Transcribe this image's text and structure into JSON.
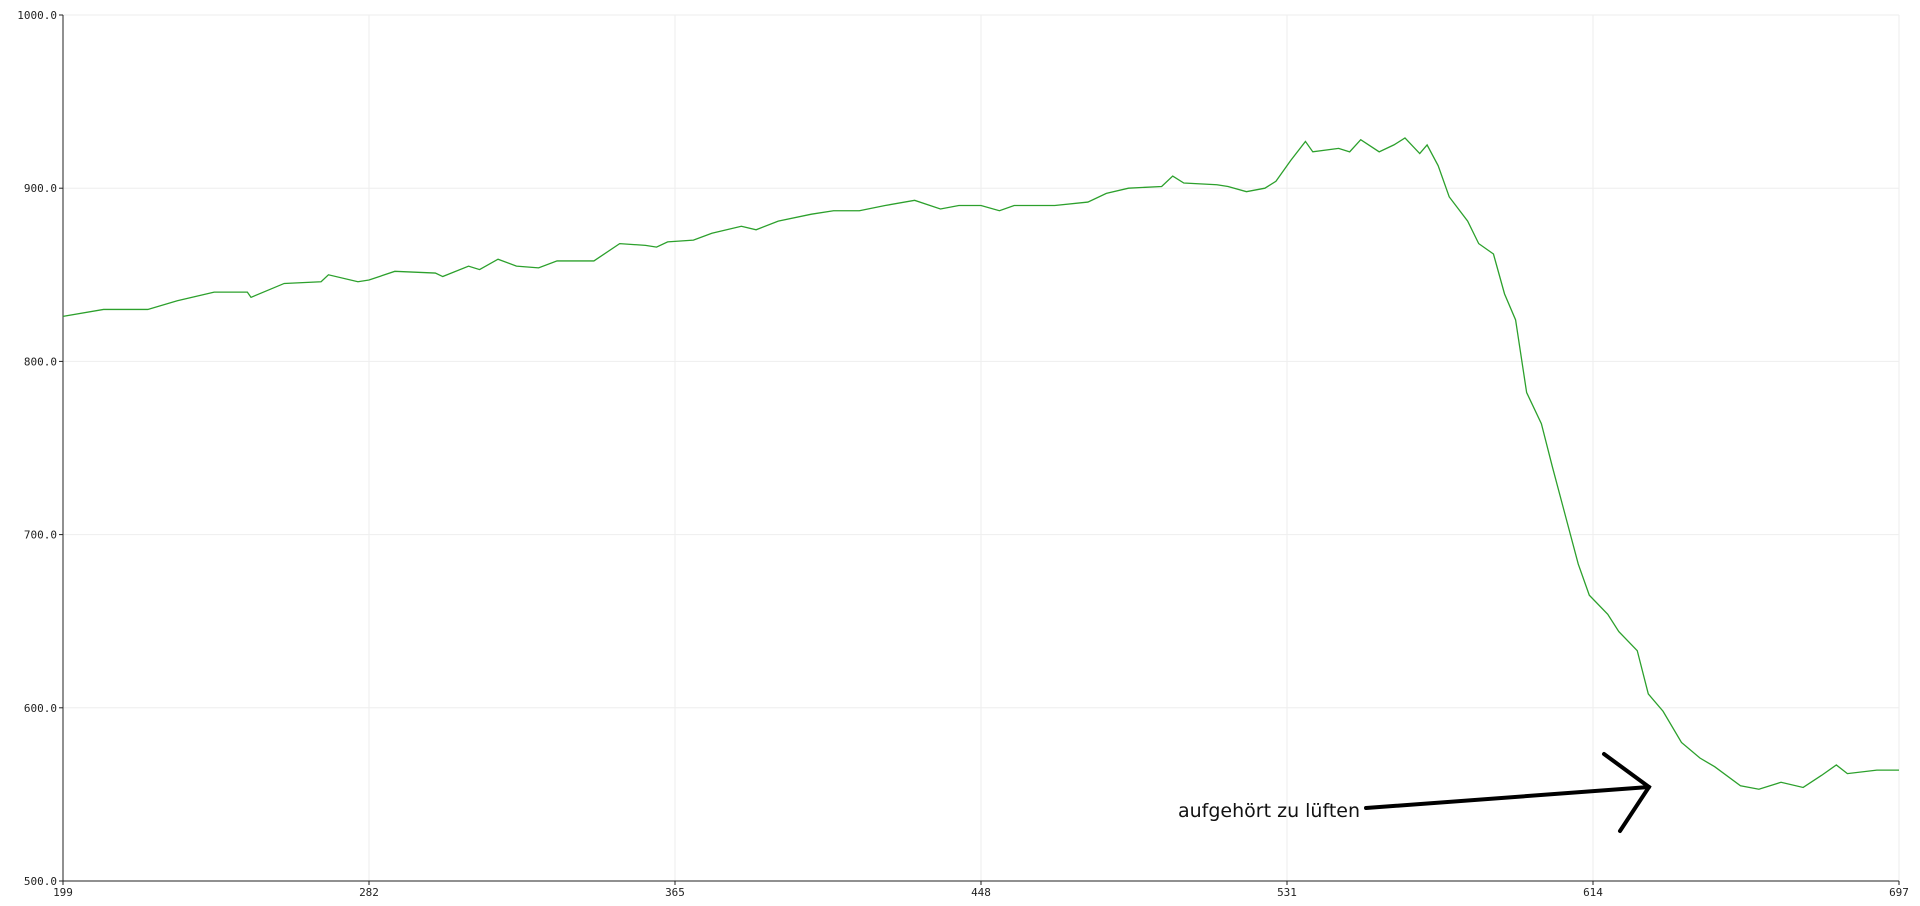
{
  "chart_data": {
    "type": "line",
    "annotation": "aufgehört zu lüften",
    "x": [
      199,
      210,
      222,
      230,
      240,
      249,
      250,
      259,
      269,
      271,
      279,
      282,
      289,
      300,
      302,
      309,
      312,
      317,
      322,
      328,
      333,
      343,
      350,
      357,
      360,
      363,
      370,
      375,
      383,
      387,
      393,
      402,
      408,
      415,
      422,
      430,
      437,
      442,
      448,
      453,
      457,
      468,
      477,
      482,
      488,
      497,
      500,
      503,
      512,
      515,
      520,
      525,
      528,
      532,
      536,
      538,
      545,
      548,
      551,
      556,
      560,
      563,
      567,
      569,
      572,
      575,
      580,
      583,
      587,
      590,
      593,
      596,
      600,
      603,
      606,
      610,
      613,
      618,
      621,
      626,
      629,
      633,
      638,
      643,
      647,
      654,
      659,
      665,
      671,
      676,
      680,
      683,
      691,
      697
    ],
    "series": [
      {
        "color": "#2ca02c",
        "values": [
          826,
          830,
          830,
          835,
          840,
          840,
          837,
          845,
          846,
          850,
          846,
          847,
          852,
          851,
          849,
          855,
          853,
          859,
          855,
          854,
          858,
          858,
          868,
          867,
          866,
          869,
          870,
          874,
          878,
          876,
          881,
          885,
          887,
          887,
          890,
          893,
          888,
          890,
          890,
          887,
          890,
          890,
          892,
          897,
          900,
          901,
          907,
          903,
          902,
          901,
          898,
          900,
          904,
          916,
          927,
          921,
          923,
          921,
          928,
          921,
          925,
          929,
          920,
          925,
          913,
          895,
          881,
          868,
          862,
          839,
          824,
          782,
          764,
          739,
          715,
          683,
          665,
          654,
          644,
          633,
          608,
          598,
          580,
          571,
          566,
          555,
          553,
          557,
          554,
          561,
          567,
          562,
          564,
          564
        ]
      }
    ],
    "xlim": [
      199,
      697
    ],
    "xticks": [
      199,
      282,
      365,
      448,
      531,
      614,
      697
    ],
    "ylim": [
      500,
      1000
    ],
    "yticks": [
      {
        "value": 500,
        "label": "500.0"
      },
      {
        "value": 600,
        "label": "600.0"
      },
      {
        "value": 700,
        "label": "700.0"
      },
      {
        "value": 800,
        "label": "800.0"
      },
      {
        "value": 900,
        "label": "900.0"
      },
      {
        "value": 1000,
        "label": "1000.0"
      }
    ],
    "grid": true
  }
}
